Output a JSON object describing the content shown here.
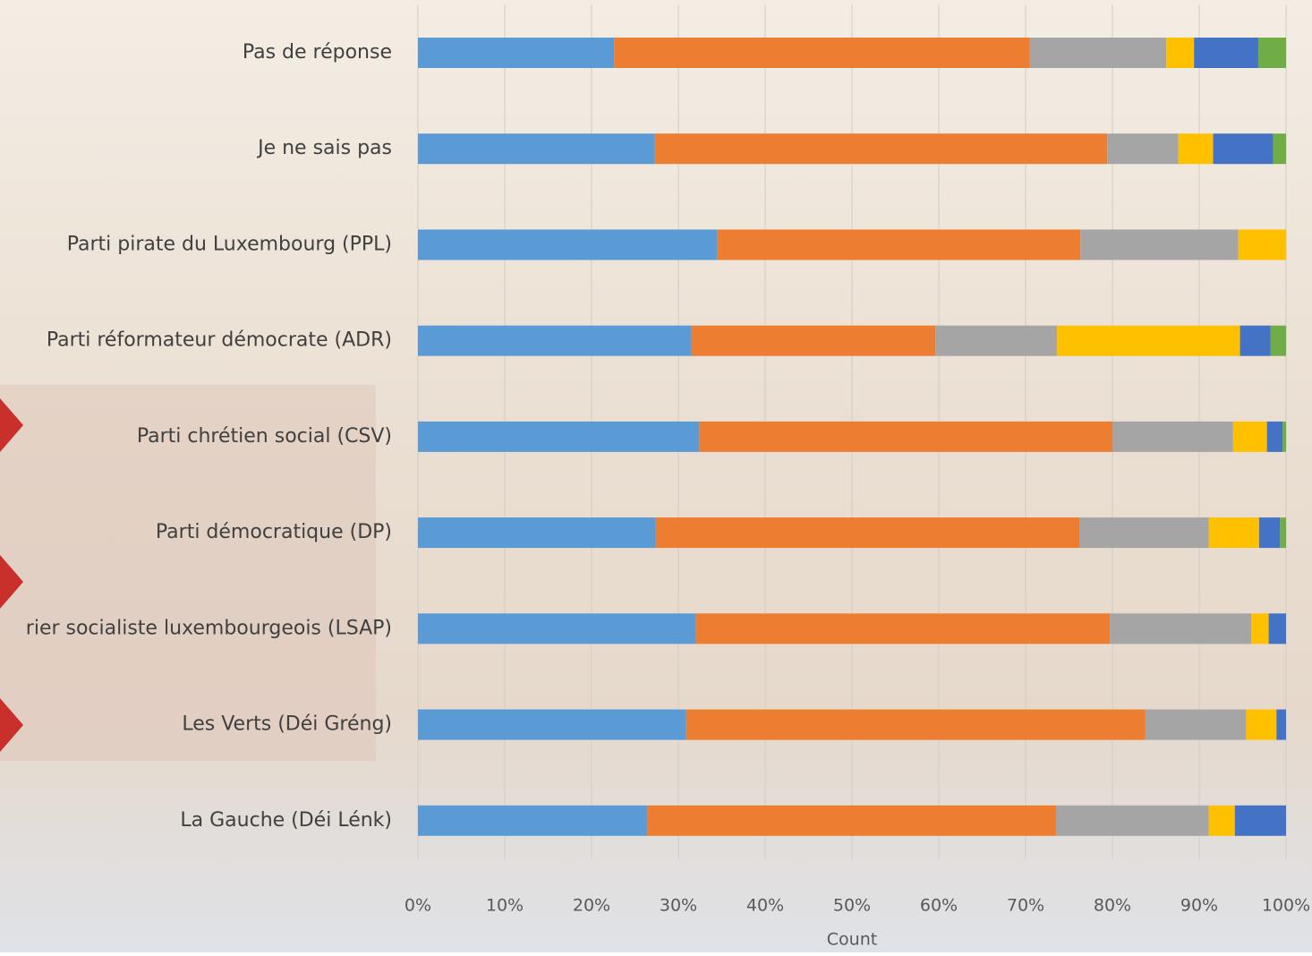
{
  "chart_data": {
    "type": "stacked-bar-horizontal",
    "categories": [
      "Pas de réponse",
      "Je ne sais pas",
      "Parti pirate du Luxembourg (PPL)",
      "Parti réformateur démocrate (ADR)",
      "Parti chrétien social (CSV)",
      "Parti démocratique (DP)",
      "rier socialiste luxembourgeois (LSAP)",
      "Les Verts (Déi Gréng)",
      "La Gauche (Déi Lénk)"
    ],
    "series": [
      {
        "color": "#5b9bd5",
        "values": [
          22.6,
          27.3,
          34.5,
          31.5,
          32.4,
          27.4,
          32.0,
          30.9,
          26.4
        ]
      },
      {
        "color": "#ed7d31",
        "values": [
          47.9,
          52.1,
          41.8,
          28.1,
          47.6,
          48.8,
          47.7,
          52.9,
          47.1
        ]
      },
      {
        "color": "#a5a5a5",
        "values": [
          15.7,
          8.2,
          18.2,
          14.0,
          13.9,
          14.9,
          16.3,
          11.6,
          17.6
        ]
      },
      {
        "color": "#ffc000",
        "values": [
          3.2,
          4.0,
          5.5,
          21.1,
          3.9,
          5.8,
          2.0,
          3.5,
          3.0
        ]
      },
      {
        "color": "#4472c4",
        "values": [
          7.4,
          6.9,
          0,
          3.5,
          1.8,
          2.4,
          2.0,
          1.1,
          5.9
        ]
      },
      {
        "color": "#70ad47",
        "values": [
          3.2,
          1.5,
          0,
          1.8,
          0.4,
          0.7,
          0,
          0,
          0
        ]
      }
    ],
    "xlim": [
      0,
      100
    ],
    "xticks": [
      {
        "value": 0,
        "label": "0%"
      },
      {
        "value": 10,
        "label": "10%"
      },
      {
        "value": 20,
        "label": "20%"
      },
      {
        "value": 30,
        "label": "30%"
      },
      {
        "value": 40,
        "label": "40%"
      },
      {
        "value": 50,
        "label": "50%"
      },
      {
        "value": 60,
        "label": "60%"
      },
      {
        "value": 70,
        "label": "70%"
      },
      {
        "value": 80,
        "label": "80%"
      },
      {
        "value": 90,
        "label": "90%"
      },
      {
        "value": 100,
        "label": "100%"
      }
    ],
    "xlabel": "Count",
    "grid": true
  }
}
